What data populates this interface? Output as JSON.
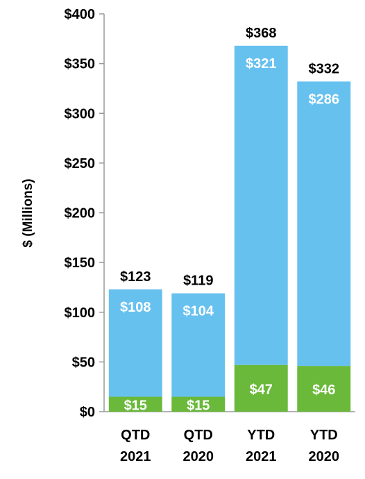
{
  "chart_data": {
    "type": "bar",
    "stacked": true,
    "categories": [
      [
        "QTD",
        "2021"
      ],
      [
        "QTD",
        "2020"
      ],
      [
        "YTD",
        "2021"
      ],
      [
        "YTD",
        "2020"
      ]
    ],
    "ylabel": "$ (Millions)",
    "ylim": [
      0,
      400
    ],
    "y_ticks": [
      0,
      50,
      100,
      150,
      200,
      250,
      300,
      350,
      400
    ],
    "y_tick_labels": [
      "$0",
      "$50",
      "$100",
      "$150",
      "$200",
      "$250",
      "$300",
      "$350",
      "$400"
    ],
    "grid": false,
    "series": [
      {
        "values": [
          15,
          15,
          47,
          46
        ],
        "labels": [
          "$15",
          "$15",
          "$47",
          "$46"
        ],
        "color": "#6ab93a"
      },
      {
        "values": [
          108,
          104,
          321,
          286
        ],
        "labels": [
          "$108",
          "$104",
          "$321",
          "$286"
        ],
        "color": "#67c1ef"
      }
    ],
    "totals": [
      123,
      119,
      368,
      332
    ],
    "total_labels": [
      "$123",
      "$119",
      "$368",
      "$332"
    ]
  }
}
